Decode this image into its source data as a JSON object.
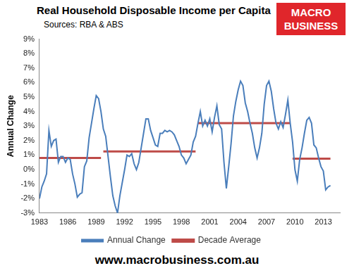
{
  "chart_data": {
    "type": "line",
    "title": "Real Household Disposable Income per Capita",
    "subtitle": "Sources: RBA & ABS",
    "logo_lines": [
      "MACRO",
      "BUSINESS"
    ],
    "footer": "www.macrobusiness.com.au",
    "y_label": "Annual Change",
    "xlim": [
      1983,
      2014.75
    ],
    "xticks": [
      1983,
      1986,
      1989,
      1992,
      1995,
      1998,
      2001,
      2004,
      2007,
      2010,
      2013
    ],
    "ylim": [
      -3,
      9
    ],
    "yticks": [
      {
        "value": -3,
        "label": "-3%"
      },
      {
        "value": -2,
        "label": "-2%"
      },
      {
        "value": -1,
        "label": "-1%"
      },
      {
        "value": 0,
        "label": "0%"
      },
      {
        "value": 1,
        "label": "1%"
      },
      {
        "value": 2,
        "label": "2%"
      },
      {
        "value": 3,
        "label": "3%"
      },
      {
        "value": 4,
        "label": "4%"
      },
      {
        "value": 5,
        "label": "5%"
      },
      {
        "value": 6,
        "label": "6%"
      },
      {
        "value": 7,
        "label": "7%"
      },
      {
        "value": 8,
        "label": "8%"
      },
      {
        "value": 9,
        "label": "9%"
      }
    ],
    "grid": false,
    "legend": "bottom",
    "series": [
      {
        "name": "Annual Change",
        "color": "#4a7ebb",
        "line_style": "solid",
        "x": [
          1983,
          1983.25,
          1983.5,
          1983.75,
          1984,
          1984.25,
          1984.5,
          1984.75,
          1985,
          1985.25,
          1985.5,
          1985.75,
          1986,
          1986.25,
          1986.5,
          1986.75,
          1987,
          1987.25,
          1987.5,
          1987.75,
          1988,
          1988.25,
          1988.5,
          1988.75,
          1989,
          1989.25,
          1989.5,
          1989.75,
          1990,
          1990.25,
          1990.5,
          1990.75,
          1991,
          1991.25,
          1991.5,
          1991.75,
          1992,
          1992.25,
          1992.5,
          1992.75,
          1993,
          1993.25,
          1993.5,
          1993.75,
          1994,
          1994.25,
          1994.5,
          1994.75,
          1995,
          1995.25,
          1995.5,
          1995.75,
          1996,
          1996.25,
          1996.5,
          1996.75,
          1997,
          1997.25,
          1997.5,
          1997.75,
          1998,
          1998.25,
          1998.5,
          1998.75,
          1999,
          1999.25,
          1999.5,
          1999.75,
          2000,
          2000.25,
          2000.5,
          2000.75,
          2001,
          2001.25,
          2001.5,
          2001.75,
          2002,
          2002.25,
          2002.5,
          2002.75,
          2003,
          2003.25,
          2003.5,
          2003.75,
          2004,
          2004.25,
          2004.5,
          2004.75,
          2005,
          2005.25,
          2005.5,
          2005.75,
          2006,
          2006.25,
          2006.5,
          2006.75,
          2007,
          2007.25,
          2007.5,
          2007.75,
          2008,
          2008.25,
          2008.5,
          2008.75,
          2009,
          2009.25,
          2009.5,
          2009.75,
          2010,
          2010.25,
          2010.5,
          2010.75,
          2011,
          2011.25,
          2011.5,
          2011.75,
          2012,
          2012.25,
          2012.5,
          2012.75,
          2013,
          2013.25,
          2013.5,
          2013.75
        ],
        "values": [
          -2.0,
          -1.2,
          -0.8,
          -0.3,
          2.7,
          1.6,
          2.0,
          2.1,
          0.5,
          0.9,
          0.9,
          0.5,
          0.8,
          0.7,
          -0.3,
          -1.0,
          -1.9,
          -1.7,
          -1.6,
          0.2,
          0.6,
          2.2,
          3.2,
          4.2,
          5.1,
          4.9,
          4.0,
          2.8,
          2.3,
          0.9,
          -0.5,
          -1.8,
          -2.5,
          -3.0,
          -1.8,
          -0.9,
          0.0,
          1.0,
          0.9,
          1.1,
          0.4,
          0.0,
          0.5,
          1.5,
          2.5,
          3.5,
          3.5,
          2.7,
          2.2,
          1.7,
          1.6,
          2.5,
          2.5,
          2.7,
          2.6,
          2.7,
          2.6,
          2.4,
          2.0,
          1.6,
          1.0,
          0.8,
          0.4,
          0.7,
          1.0,
          1.9,
          2.3,
          3.2,
          4.0,
          3.0,
          3.4,
          3.0,
          3.5,
          2.6,
          3.6,
          4.4,
          3.1,
          2.8,
          0.5,
          -1.3,
          0.2,
          1.8,
          3.7,
          4.7,
          5.5,
          6.1,
          5.8,
          4.6,
          4.0,
          3.2,
          2.5,
          1.5,
          0.8,
          1.5,
          2.5,
          4.5,
          5.8,
          6.1,
          5.4,
          4.2,
          3.2,
          2.8,
          3.3,
          2.9,
          3.8,
          4.8,
          3.2,
          1.9,
          0.0,
          -0.8,
          0.7,
          1.5,
          2.5,
          3.4,
          3.6,
          3.2,
          1.7,
          1.5,
          0.8,
          0.2,
          -0.1,
          -1.4,
          -1.2,
          -1.1
        ]
      },
      {
        "name": "Decade Average",
        "color": "#be4b48",
        "line_style": "solid",
        "segments": [
          {
            "x": [
              1983,
              1989.5
            ],
            "value": 0.8
          },
          {
            "x": [
              1989.75,
              1999.5
            ],
            "value": 1.25
          },
          {
            "x": [
              1999.75,
              2009.5
            ],
            "value": 3.2
          },
          {
            "x": [
              2009.75,
              2013.75
            ],
            "value": 0.75
          }
        ]
      }
    ]
  }
}
